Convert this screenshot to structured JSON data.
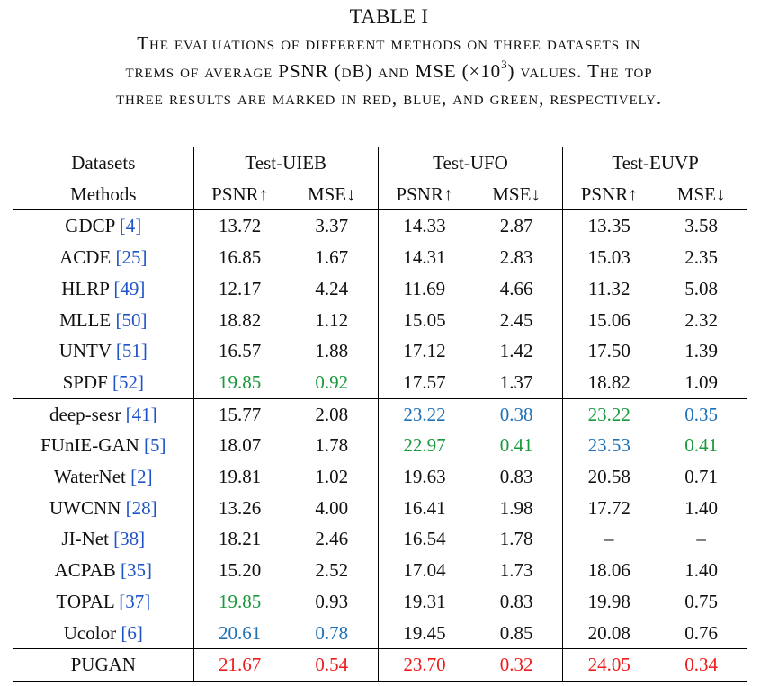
{
  "caption": {
    "title": "TABLE I",
    "line1": "The evaluations of different methods on three datasets in",
    "line2_pre": "trems of average PSNR (dB) and MSE (×10",
    "line2_sup": "3",
    "line2_post": ") values. The top",
    "line3": "three results are marked in red, blue, and green, respectively."
  },
  "rank_colors": {
    "red": "#ee1c1c",
    "blue": "#2072b8",
    "green": "#1a9a3c",
    "citation": "#1f53c8"
  },
  "header": {
    "datasets_label": "Datasets",
    "methods_label": "Methods",
    "datasets": [
      "Test-UIEB",
      "Test-UFO",
      "Test-EUVP"
    ],
    "metrics": [
      "PSNR↑",
      "MSE↓",
      "PSNR↑",
      "MSE↓",
      "PSNR↑",
      "MSE↓"
    ]
  },
  "groups": [
    {
      "rows": [
        {
          "method": "GDCP",
          "ref": "4",
          "values": [
            "13.72",
            "3.37",
            "14.33",
            "2.87",
            "13.35",
            "3.58"
          ],
          "ranks": [
            "",
            "",
            "",
            "",
            "",
            ""
          ]
        },
        {
          "method": "ACDE",
          "ref": "25",
          "values": [
            "16.85",
            "1.67",
            "14.31",
            "2.83",
            "15.03",
            "2.35"
          ],
          "ranks": [
            "",
            "",
            "",
            "",
            "",
            ""
          ]
        },
        {
          "method": "HLRP",
          "ref": "49",
          "values": [
            "12.17",
            "4.24",
            "11.69",
            "4.66",
            "11.32",
            "5.08"
          ],
          "ranks": [
            "",
            "",
            "",
            "",
            "",
            ""
          ]
        },
        {
          "method": "MLLE",
          "ref": "50",
          "values": [
            "18.82",
            "1.12",
            "15.05",
            "2.45",
            "15.06",
            "2.32"
          ],
          "ranks": [
            "",
            "",
            "",
            "",
            "",
            ""
          ]
        },
        {
          "method": "UNTV",
          "ref": "51",
          "values": [
            "16.57",
            "1.88",
            "17.12",
            "1.42",
            "17.50",
            "1.39"
          ],
          "ranks": [
            "",
            "",
            "",
            "",
            "",
            ""
          ]
        },
        {
          "method": "SPDF",
          "ref": "52",
          "values": [
            "19.85",
            "0.92",
            "17.57",
            "1.37",
            "18.82",
            "1.09"
          ],
          "ranks": [
            "green",
            "green",
            "",
            "",
            "",
            ""
          ]
        }
      ]
    },
    {
      "rows": [
        {
          "method": "deep-sesr",
          "ref": "41",
          "values": [
            "15.77",
            "2.08",
            "23.22",
            "0.38",
            "23.22",
            "0.35"
          ],
          "ranks": [
            "",
            "",
            "blue",
            "blue",
            "green",
            "blue"
          ]
        },
        {
          "method": "FUnIE-GAN",
          "ref": "5",
          "values": [
            "18.07",
            "1.78",
            "22.97",
            "0.41",
            "23.53",
            "0.41"
          ],
          "ranks": [
            "",
            "",
            "green",
            "green",
            "blue",
            "green"
          ]
        },
        {
          "method": "WaterNet",
          "ref": "2",
          "values": [
            "19.81",
            "1.02",
            "19.63",
            "0.83",
            "20.58",
            "0.71"
          ],
          "ranks": [
            "",
            "",
            "",
            "",
            "",
            ""
          ]
        },
        {
          "method": "UWCNN",
          "ref": "28",
          "values": [
            "13.26",
            "4.00",
            "16.41",
            "1.98",
            "17.72",
            "1.40"
          ],
          "ranks": [
            "",
            "",
            "",
            "",
            "",
            ""
          ]
        },
        {
          "method": "JI-Net",
          "ref": "38",
          "values": [
            "18.21",
            "2.46",
            "16.54",
            "1.78",
            "–",
            "–"
          ],
          "ranks": [
            "",
            "",
            "",
            "",
            "",
            ""
          ]
        },
        {
          "method": "ACPAB",
          "ref": "35",
          "values": [
            "15.20",
            "2.52",
            "17.04",
            "1.73",
            "18.06",
            "1.40"
          ],
          "ranks": [
            "",
            "",
            "",
            "",
            "",
            ""
          ]
        },
        {
          "method": "TOPAL",
          "ref": "37",
          "values": [
            "19.85",
            "0.93",
            "19.31",
            "0.83",
            "19.98",
            "0.75"
          ],
          "ranks": [
            "green",
            "",
            "",
            "",
            "",
            ""
          ]
        },
        {
          "method": "Ucolor",
          "ref": "6",
          "values": [
            "20.61",
            "0.78",
            "19.45",
            "0.85",
            "20.08",
            "0.76"
          ],
          "ranks": [
            "blue",
            "blue",
            "",
            "",
            "",
            ""
          ]
        }
      ]
    },
    {
      "rows": [
        {
          "method": "PUGAN",
          "ref": "",
          "values": [
            "21.67",
            "0.54",
            "23.70",
            "0.32",
            "24.05",
            "0.34"
          ],
          "ranks": [
            "red",
            "red",
            "red",
            "red",
            "red",
            "red"
          ]
        }
      ]
    }
  ]
}
